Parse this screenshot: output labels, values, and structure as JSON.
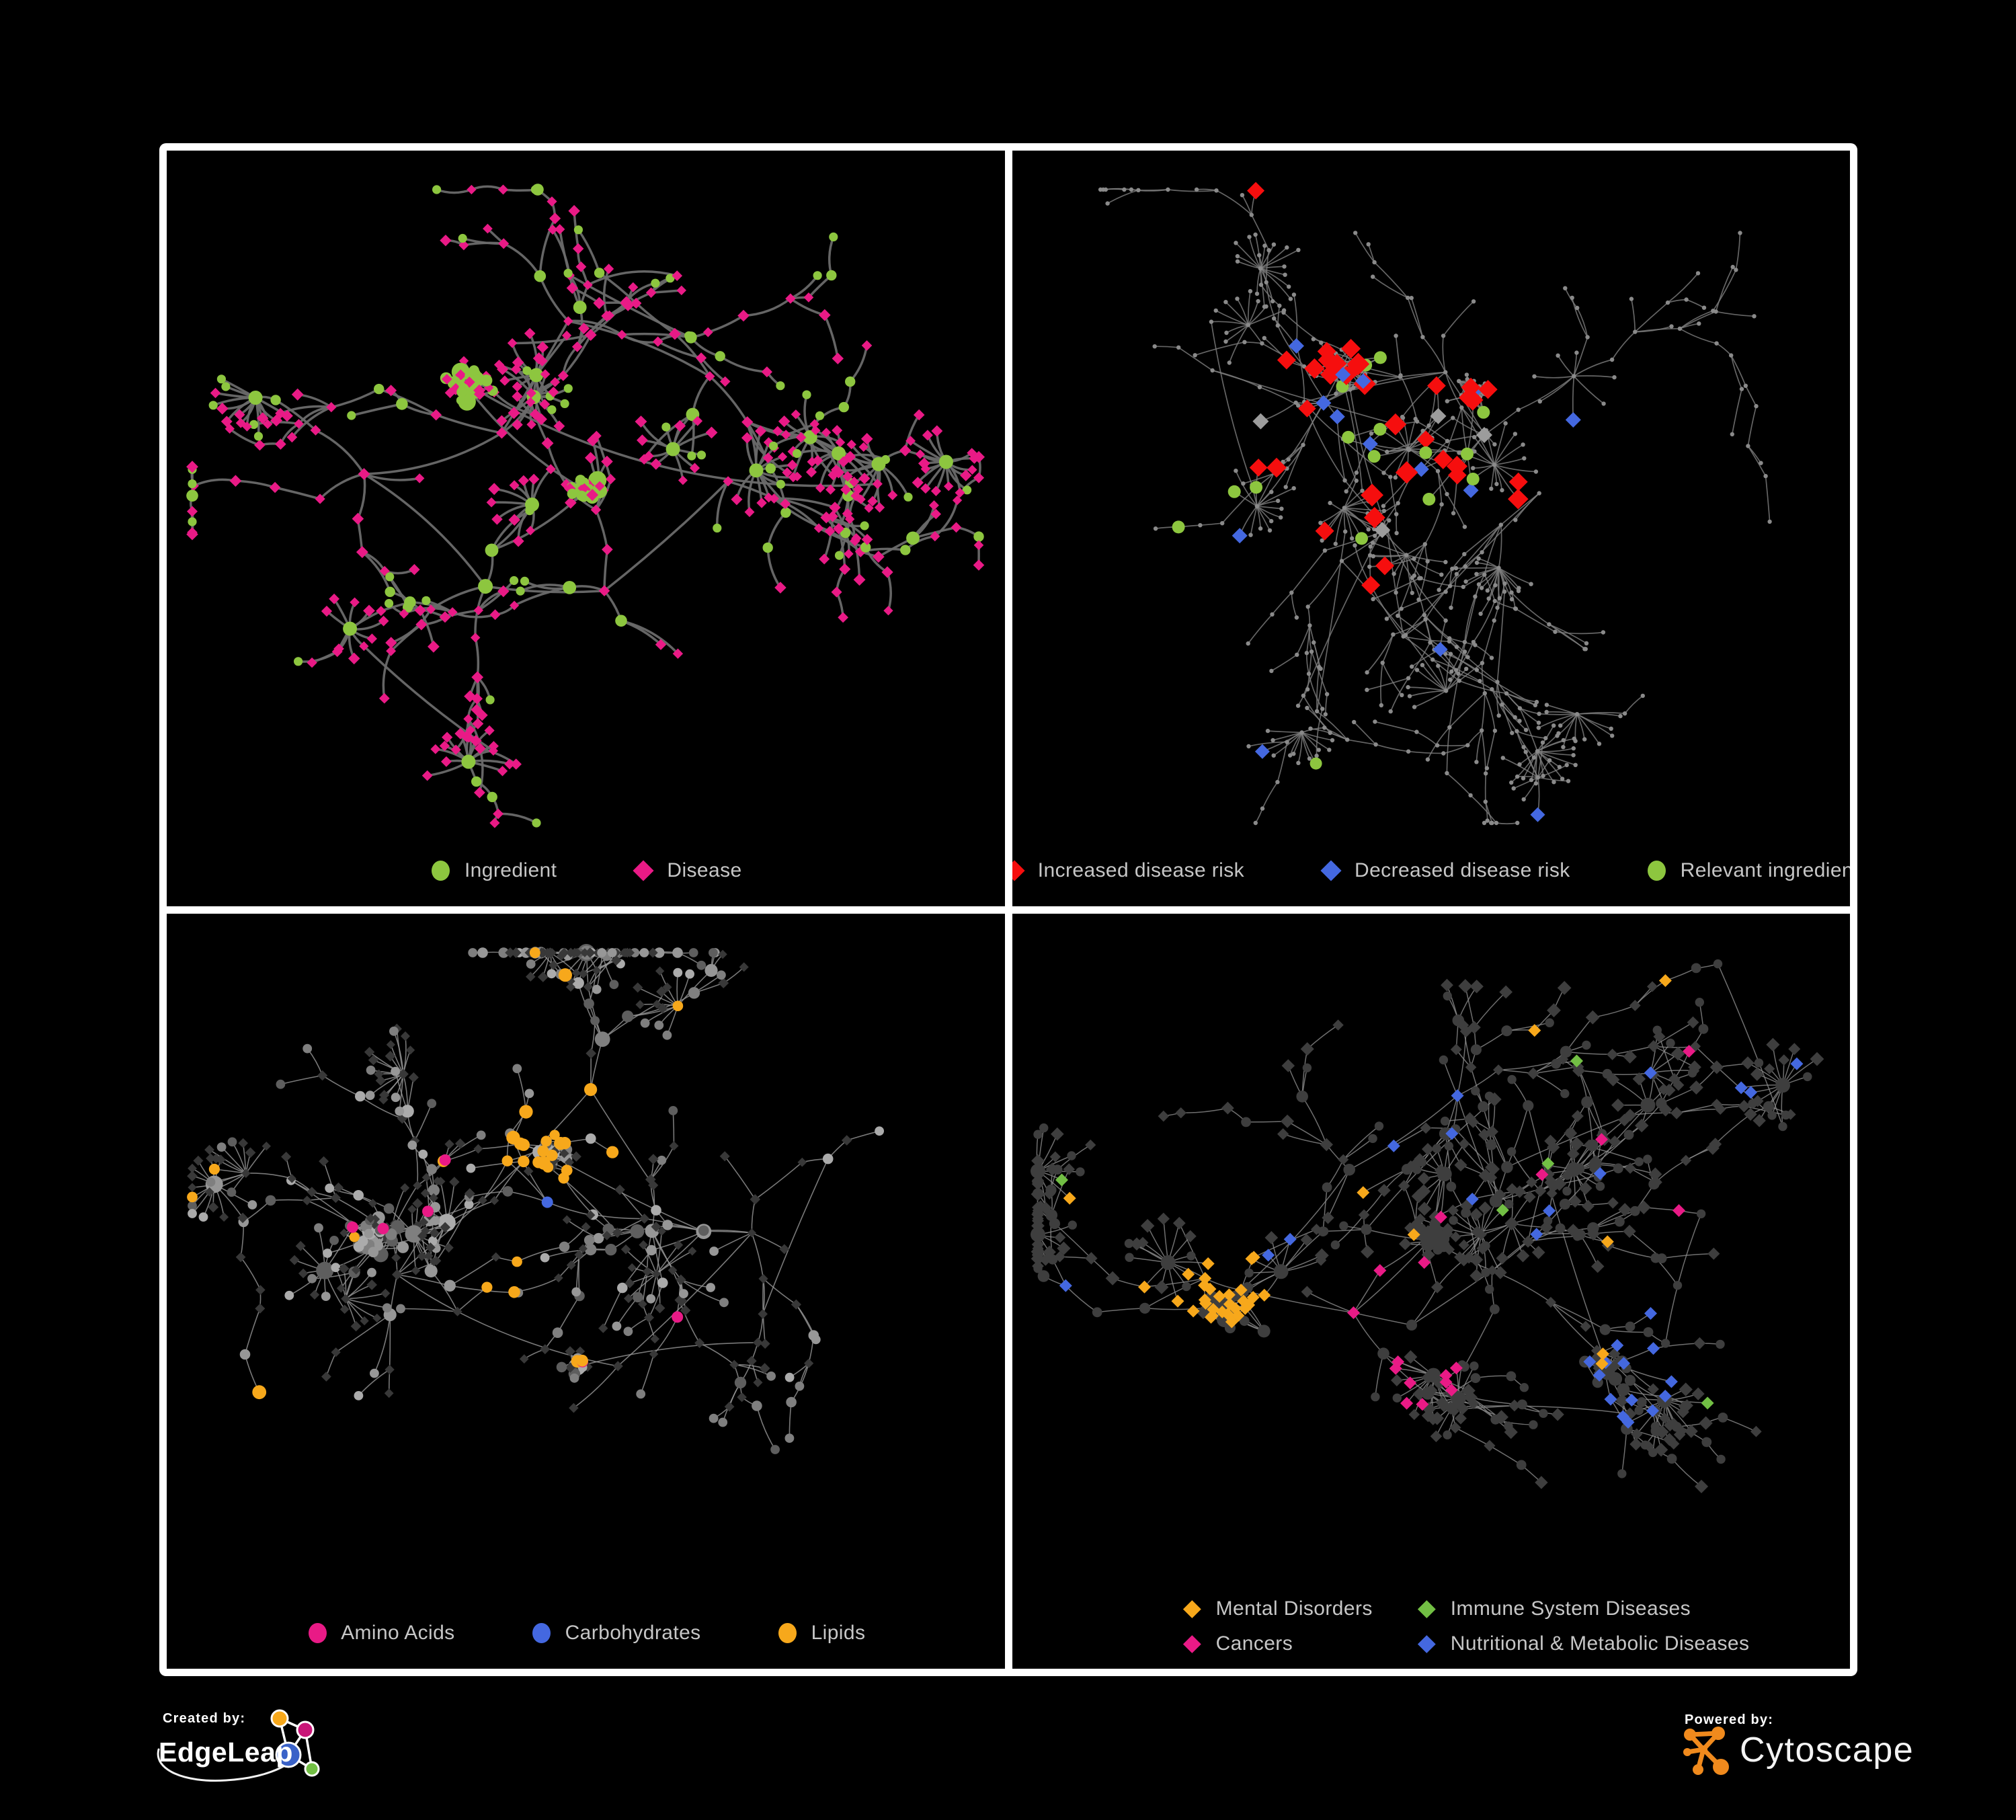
{
  "colors": {
    "background": "#000000",
    "frame": "#FFFFFF",
    "legend_text": "#C6C6C6",
    "green": "#8DC63F",
    "pink": "#E91A86",
    "red": "#F60E0E",
    "blue": "#4468E0",
    "orange": "#F7A81B",
    "green_diamond": "#72BF44",
    "gray_diamond": "#9C9C9C",
    "base_dot": "#8A8A8A",
    "dark_node": "#3E3E3E",
    "dim_diamond": "#383838"
  },
  "panels": [
    {
      "name": "ingredient-disease-network",
      "edge_color": "#6A6A6A",
      "legend": [
        {
          "label": "Ingredient",
          "shape": "circle",
          "color": "#8DC63F"
        },
        {
          "label": "Disease",
          "shape": "diamond",
          "color": "#E91A86"
        }
      ]
    },
    {
      "name": "disease-risk-network",
      "edge_color": "#7E7E7E",
      "legend": [
        {
          "label": "Increased disease risk",
          "shape": "diamond",
          "color": "#F60E0E"
        },
        {
          "label": "Decreased disease risk",
          "shape": "diamond",
          "color": "#4468E0"
        },
        {
          "label": "Relevant ingredient",
          "shape": "circle",
          "color": "#8DC63F"
        }
      ]
    },
    {
      "name": "nutrient-class-network",
      "edge_color": "#979797",
      "legend": [
        {
          "label": "Amino Acids",
          "shape": "circle",
          "color": "#E91A86"
        },
        {
          "label": "Carbohydrates",
          "shape": "circle",
          "color": "#4468E0"
        },
        {
          "label": "Lipids",
          "shape": "circle",
          "color": "#F7A81B"
        }
      ]
    },
    {
      "name": "disease-class-network",
      "edge_color": "#8B8B8B",
      "legend_rows": 2,
      "legend": [
        {
          "label": "Mental Disorders",
          "shape": "diamond",
          "color": "#F7A81B"
        },
        {
          "label": "Immune System Diseases",
          "shape": "diamond",
          "color": "#72BF44"
        },
        {
          "label": "Cancers",
          "shape": "diamond",
          "color": "#E91A86"
        },
        {
          "label": "Nutritional & Metabolic Diseases",
          "shape": "diamond",
          "color": "#4468E0"
        }
      ]
    }
  ],
  "footer": {
    "created_by_label": "Created by:",
    "created_brand": "EdgeLeap",
    "powered_by_label": "Powered by:",
    "powered_brand": "Cytoscape",
    "edgeleap_icon_colors": [
      "#F7A81B",
      "#C91578",
      "#3A62C8",
      "#72BF44"
    ],
    "cytoscape_icon_color": "#F08A1D"
  }
}
